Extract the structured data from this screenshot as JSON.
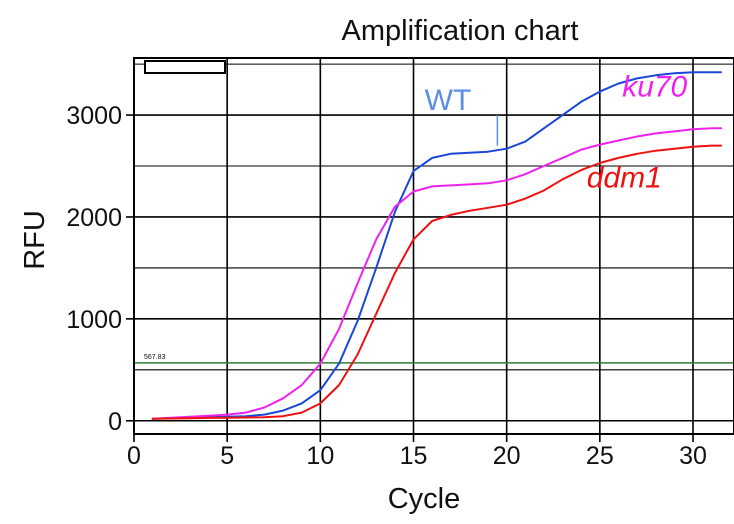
{
  "chart_data": {
    "type": "line",
    "title": "Amplification chart",
    "xlabel": "Cycle",
    "ylabel": "RFU",
    "xlim": [
      0,
      32.2
    ],
    "ylim": [
      -130,
      3560
    ],
    "xticks": [
      "0",
      "5",
      "10",
      "15",
      "20",
      "25",
      "30"
    ],
    "yticks": [
      "0",
      "1000",
      "2000",
      "3000"
    ],
    "threshold": {
      "label": "567.83",
      "value": 567.83,
      "color": "#2e7d32"
    },
    "grid": true,
    "series": [
      {
        "name": "WT",
        "color": "#1a47d8",
        "label_color": "#5b8fe0",
        "x": [
          1,
          2,
          3,
          4,
          5,
          6,
          7,
          8,
          9,
          10,
          11,
          12,
          13,
          14,
          15,
          16,
          17,
          18,
          19,
          20,
          21,
          22,
          23,
          24,
          25,
          26,
          27,
          28,
          29,
          30,
          31,
          31.5
        ],
        "y": [
          20,
          25,
          30,
          35,
          40,
          45,
          60,
          100,
          170,
          300,
          560,
          980,
          1500,
          2050,
          2450,
          2580,
          2620,
          2630,
          2640,
          2670,
          2740,
          2870,
          3000,
          3130,
          3230,
          3310,
          3360,
          3390,
          3410,
          3420,
          3420,
          3420
        ]
      },
      {
        "name": "ku70",
        "color": "#ee22ee",
        "label_color": "#ee22ee",
        "x": [
          1,
          2,
          3,
          4,
          5,
          6,
          7,
          8,
          9,
          10,
          11,
          12,
          13,
          14,
          15,
          16,
          17,
          18,
          19,
          20,
          21,
          22,
          23,
          24,
          25,
          26,
          27,
          28,
          29,
          30,
          31,
          31.5
        ],
        "y": [
          20,
          30,
          40,
          50,
          60,
          80,
          130,
          220,
          350,
          560,
          900,
          1350,
          1780,
          2100,
          2250,
          2300,
          2310,
          2320,
          2330,
          2360,
          2420,
          2500,
          2580,
          2660,
          2710,
          2750,
          2790,
          2820,
          2840,
          2860,
          2870,
          2870
        ]
      },
      {
        "name": "ddm1",
        "color": "#ee1111",
        "label_color": "#ee1111",
        "x": [
          1,
          2,
          3,
          4,
          5,
          6,
          7,
          8,
          9,
          10,
          11,
          12,
          13,
          14,
          15,
          16,
          17,
          18,
          19,
          20,
          21,
          22,
          23,
          24,
          25,
          26,
          27,
          28,
          29,
          30,
          31,
          31.5
        ],
        "y": [
          20,
          22,
          25,
          28,
          30,
          32,
          35,
          45,
          80,
          170,
          350,
          650,
          1050,
          1450,
          1780,
          1960,
          2020,
          2060,
          2090,
          2120,
          2180,
          2260,
          2370,
          2460,
          2530,
          2580,
          2620,
          2650,
          2670,
          2690,
          2700,
          2700
        ]
      }
    ]
  }
}
